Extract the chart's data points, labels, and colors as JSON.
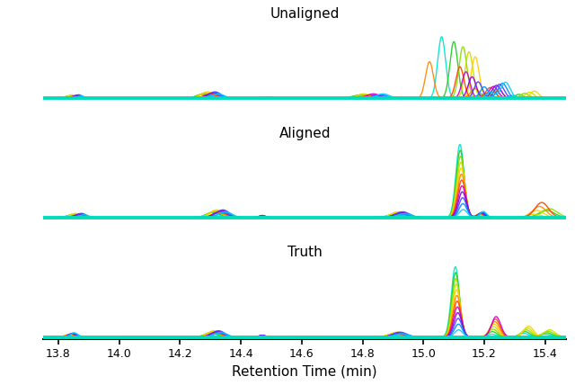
{
  "panels": [
    "Unaligned",
    "Aligned",
    "Truth"
  ],
  "xlabel": "Retention Time (min)",
  "xmin": 13.75,
  "xmax": 15.47,
  "xticks": [
    13.8,
    14.0,
    14.2,
    14.4,
    14.6,
    14.8,
    15.0,
    15.2,
    15.4
  ],
  "xtick_labels": [
    "13.8",
    "14.0",
    "14.2",
    "14.4",
    "14.6",
    "14.8",
    "15.0",
    "15.2",
    "15.4"
  ],
  "colors": [
    "#00E5CC",
    "#22CC22",
    "#88DD00",
    "#CCDD00",
    "#FFCC00",
    "#FF8800",
    "#FF4400",
    "#CC00CC",
    "#8800DD",
    "#4444FF",
    "#0088FF",
    "#00CCFF"
  ],
  "background_color": "#ffffff",
  "baseline_color": "#00DDBB",
  "title_fontsize": 11,
  "xlabel_fontsize": 11,
  "tick_fontsize": 9,
  "linewidth": 1.0
}
